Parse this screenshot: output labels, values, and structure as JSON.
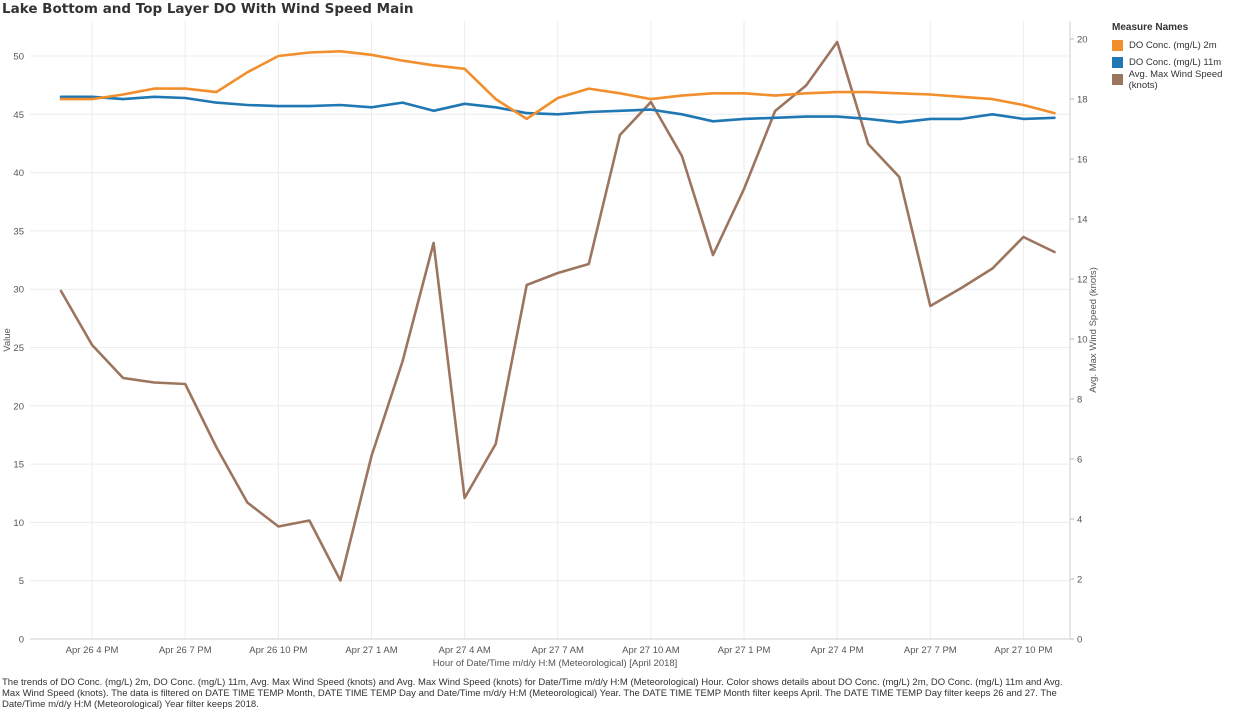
{
  "chart_data": {
    "type": "line",
    "title": "Lake Bottom and Top Layer DO With Wind Speed Main",
    "xlabel": "Hour of Date/Time m/d/y H:M (Meteorological) [April 2018]",
    "ylabel": "Value",
    "y2label": "Avg. Max Wind Speed (knots)",
    "ylim": [
      0,
      53
    ],
    "y2lim": [
      0,
      20.6
    ],
    "y_ticks": [
      0,
      5,
      10,
      15,
      20,
      25,
      30,
      35,
      40,
      45,
      50
    ],
    "y2_ticks": [
      0,
      2,
      4,
      6,
      8,
      10,
      12,
      14,
      16,
      18,
      20
    ],
    "x_start_hour": 14,
    "x_end_hour": 47.5,
    "x_tick_labels": [
      "Apr 26 4 PM",
      "Apr 26 7 PM",
      "Apr 26 10 PM",
      "Apr 27 1 AM",
      "Apr 27 4 AM",
      "Apr 27 7 AM",
      "Apr 27 10 AM",
      "Apr 27 1 PM",
      "Apr 27 4 PM",
      "Apr 27 7 PM",
      "Apr 27 10 PM"
    ],
    "x_hours": [
      15,
      16,
      17,
      18,
      19,
      20,
      21,
      22,
      23,
      24,
      25,
      26,
      27,
      28,
      29,
      30,
      31,
      32,
      33,
      34,
      35,
      36,
      37,
      38,
      39,
      40,
      41,
      42,
      43,
      44,
      45,
      46,
      47
    ],
    "grid": true,
    "legend_title": "Measure Names",
    "legend_position": "right",
    "series": [
      {
        "name": "DO Conc. (mg/L) 2m",
        "axis": "left",
        "color": "#f28e2b",
        "values": [
          46.3,
          46.3,
          46.7,
          47.2,
          47.2,
          46.9,
          48.6,
          50.0,
          50.3,
          50.4,
          50.1,
          49.6,
          49.2,
          48.9,
          46.3,
          44.6,
          46.4,
          47.2,
          46.8,
          46.3,
          46.6,
          46.8,
          46.8,
          46.6,
          46.8,
          46.9,
          46.9,
          46.8,
          46.7,
          46.5,
          46.3,
          45.8,
          45.1
        ]
      },
      {
        "name": "DO Conc. (mg/L) 11m",
        "axis": "left",
        "color": "#1f77b4",
        "values": [
          46.5,
          46.5,
          46.3,
          46.5,
          46.4,
          46.0,
          45.8,
          45.7,
          45.7,
          45.8,
          45.6,
          46.0,
          45.3,
          45.9,
          45.6,
          45.1,
          45.0,
          45.2,
          45.3,
          45.4,
          45.0,
          44.4,
          44.6,
          44.7,
          44.8,
          44.8,
          44.6,
          44.3,
          44.6,
          44.6,
          45.0,
          44.6,
          44.7
        ]
      },
      {
        "name": "Avg. Max Wind Speed (knots)",
        "axis": "right",
        "color": "#9c755f",
        "values": [
          11.6,
          9.8,
          8.7,
          8.55,
          8.5,
          6.4,
          4.55,
          3.75,
          3.95,
          1.95,
          6.1,
          9.25,
          13.2,
          4.7,
          6.5,
          11.8,
          12.2,
          12.5,
          16.8,
          17.9,
          16.1,
          12.8,
          15.0,
          17.6,
          18.45,
          19.9,
          16.5,
          15.4,
          11.1,
          11.7,
          12.35,
          13.4,
          12.9
        ]
      }
    ]
  },
  "caption": "The trends of DO Conc. (mg/L) 2m, DO Conc. (mg/L) 11m, Avg. Max Wind Speed (knots) and Avg. Max Wind Speed (knots) for Date/Time m/d/y H:M (Meteorological) Hour.  Color shows details about DO Conc. (mg/L) 2m, DO Conc. (mg/L) 11m and Avg. Max Wind Speed (knots). The data is filtered on DATE TIME TEMP Month, DATE TIME TEMP Day and Date/Time m/d/y H:M (Meteorological) Year. The DATE TIME TEMP Month filter keeps April. The DATE TIME TEMP Day filter keeps 26 and 27. The Date/Time m/d/y H:M (Meteorological) Year filter keeps 2018."
}
